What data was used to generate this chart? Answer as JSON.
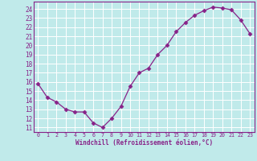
{
  "x": [
    0,
    1,
    2,
    3,
    4,
    5,
    6,
    7,
    8,
    9,
    10,
    11,
    12,
    13,
    14,
    15,
    16,
    17,
    18,
    19,
    20,
    21,
    22,
    23
  ],
  "y": [
    15.8,
    14.3,
    13.8,
    13.0,
    12.7,
    12.7,
    11.5,
    11.0,
    12.0,
    13.3,
    15.5,
    17.0,
    17.5,
    19.0,
    20.0,
    21.5,
    22.5,
    23.3,
    23.8,
    24.2,
    24.1,
    23.9,
    22.8,
    21.3
  ],
  "line_color": "#882288",
  "marker": "D",
  "marker_size": 2.5,
  "bg_color": "#c0eaea",
  "grid_color": "#ffffff",
  "xlabel": "Windchill (Refroidissement éolien,°C)",
  "xlabel_color": "#882288",
  "tick_color": "#882288",
  "yticks": [
    11,
    12,
    13,
    14,
    15,
    16,
    17,
    18,
    19,
    20,
    21,
    22,
    23,
    24
  ],
  "xticks": [
    0,
    1,
    2,
    3,
    4,
    5,
    6,
    7,
    8,
    9,
    10,
    11,
    12,
    13,
    14,
    15,
    16,
    17,
    18,
    19,
    20,
    21,
    22,
    23
  ],
  "ylim": [
    10.5,
    24.8
  ],
  "xlim": [
    -0.5,
    23.5
  ],
  "spine_color": "#882288"
}
